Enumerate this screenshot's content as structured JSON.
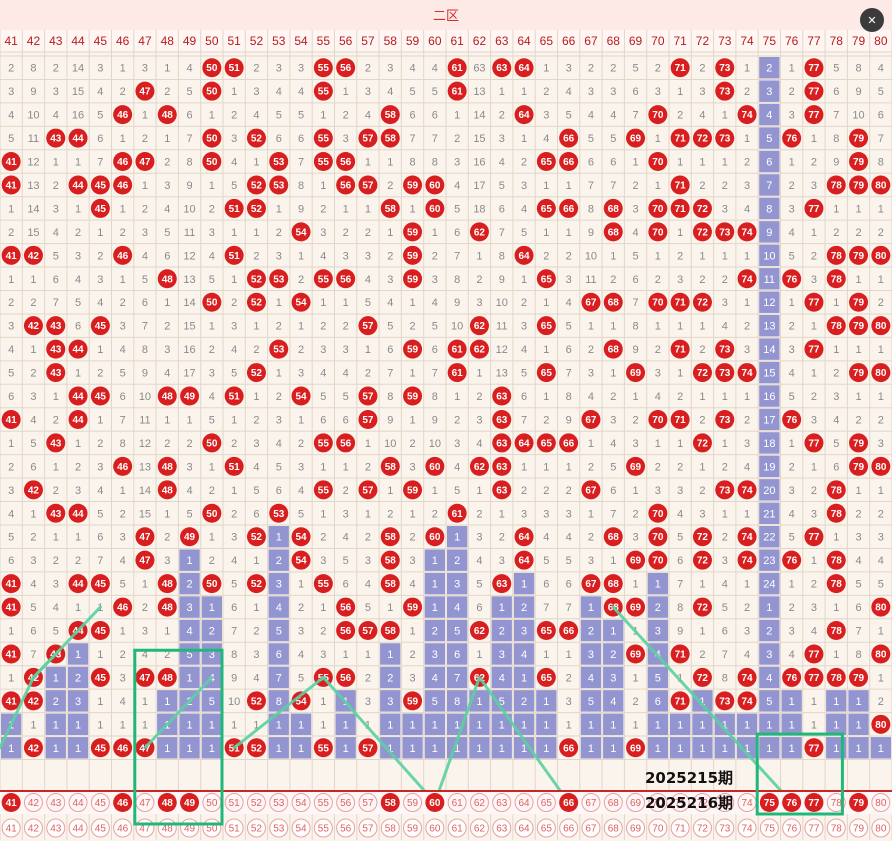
{
  "zone_title": "二区",
  "numbers": [
    41,
    42,
    43,
    44,
    45,
    46,
    47,
    48,
    49,
    50,
    51,
    52,
    53,
    54,
    55,
    56,
    57,
    58,
    59,
    60,
    61,
    62,
    63,
    64,
    65,
    66,
    67,
    68,
    69,
    70,
    71,
    72,
    73,
    74,
    75,
    76,
    77,
    78,
    79,
    80
  ],
  "period_labels": [
    "2025215期",
    "2025216期"
  ],
  "prediction_row": {
    "hits": [
      41,
      46,
      48,
      49,
      58,
      60,
      66,
      75,
      76,
      77,
      79
    ],
    "strokes": [
      41,
      42,
      43,
      44,
      45,
      46,
      47,
      48,
      49,
      50,
      51,
      52,
      53,
      54,
      55,
      56,
      57,
      59,
      61,
      62,
      63,
      64,
      65,
      67,
      68,
      69,
      70,
      71,
      72,
      73,
      74,
      78,
      80
    ]
  },
  "footer_row": [
    41,
    42,
    43,
    44,
    45,
    46,
    47,
    48,
    49,
    50,
    51,
    52,
    53,
    54,
    55,
    56,
    57,
    58,
    59,
    60,
    61,
    62,
    63,
    64,
    65,
    66,
    67,
    68,
    69,
    70,
    71,
    72,
    73,
    74,
    75,
    76,
    77,
    78,
    79,
    80
  ],
  "draw_rows": [
    [
      2,
      8,
      2,
      14,
      3,
      1,
      3,
      1,
      4,
      50,
      51,
      2,
      3,
      3,
      55,
      56,
      2,
      3,
      4,
      4,
      61,
      63,
      63,
      64,
      1,
      3,
      2,
      2,
      5,
      2,
      71,
      2,
      73,
      1,
      2,
      1,
      77,
      5,
      8,
      4
    ],
    [
      3,
      9,
      3,
      15,
      4,
      2,
      47,
      2,
      5,
      50,
      1,
      3,
      4,
      4,
      55,
      1,
      3,
      4,
      5,
      5,
      61,
      13,
      1,
      1,
      2,
      4,
      3,
      3,
      6,
      3,
      1,
      3,
      73,
      2,
      3,
      2,
      77,
      6,
      9,
      5
    ],
    [
      4,
      10,
      4,
      16,
      5,
      46,
      1,
      48,
      6,
      1,
      2,
      4,
      5,
      5,
      1,
      2,
      4,
      58,
      6,
      6,
      1,
      14,
      2,
      64,
      3,
      5,
      4,
      4,
      7,
      70,
      2,
      4,
      1,
      74,
      4,
      3,
      77,
      7,
      10,
      6
    ],
    [
      5,
      11,
      43,
      44,
      6,
      1,
      2,
      1,
      7,
      50,
      3,
      52,
      6,
      6,
      55,
      3,
      57,
      58,
      7,
      7,
      2,
      15,
      3,
      1,
      4,
      66,
      5,
      5,
      69,
      1,
      71,
      72,
      73,
      1,
      5,
      76,
      1,
      8,
      79,
      7
    ],
    [
      41,
      12,
      1,
      1,
      7,
      46,
      47,
      2,
      8,
      50,
      4,
      1,
      53,
      7,
      55,
      56,
      1,
      1,
      8,
      8,
      3,
      16,
      4,
      2,
      65,
      66,
      6,
      6,
      1,
      70,
      1,
      1,
      1,
      2,
      6,
      1,
      2,
      9,
      79,
      8
    ],
    [
      41,
      13,
      2,
      44,
      45,
      46,
      1,
      3,
      9,
      1,
      5,
      52,
      53,
      8,
      1,
      56,
      57,
      2,
      59,
      60,
      4,
      17,
      5,
      3,
      1,
      1,
      7,
      7,
      2,
      1,
      71,
      2,
      2,
      3,
      7,
      2,
      3,
      78,
      79,
      80
    ],
    [
      1,
      14,
      3,
      1,
      45,
      1,
      2,
      4,
      10,
      2,
      51,
      52,
      1,
      9,
      2,
      1,
      1,
      58,
      1,
      60,
      5,
      18,
      6,
      4,
      65,
      66,
      8,
      68,
      3,
      70,
      71,
      72,
      3,
      4,
      8,
      3,
      77,
      1,
      1,
      1
    ],
    [
      2,
      15,
      4,
      2,
      1,
      2,
      3,
      5,
      11,
      3,
      1,
      1,
      2,
      54,
      3,
      2,
      2,
      1,
      59,
      1,
      6,
      62,
      7,
      5,
      1,
      1,
      9,
      68,
      4,
      70,
      1,
      72,
      73,
      74,
      9,
      4,
      1,
      2,
      2,
      2
    ],
    [
      41,
      42,
      5,
      3,
      2,
      46,
      4,
      6,
      12,
      4,
      51,
      2,
      3,
      1,
      4,
      3,
      3,
      2,
      59,
      2,
      7,
      1,
      8,
      64,
      2,
      2,
      10,
      1,
      5,
      1,
      2,
      1,
      1,
      1,
      10,
      5,
      2,
      78,
      79,
      80
    ],
    [
      1,
      1,
      6,
      4,
      3,
      1,
      5,
      48,
      13,
      5,
      1,
      52,
      53,
      2,
      55,
      56,
      4,
      3,
      59,
      3,
      8,
      2,
      9,
      1,
      65,
      3,
      11,
      2,
      6,
      2,
      3,
      2,
      2,
      74,
      11,
      76,
      3,
      78,
      1,
      1
    ],
    [
      2,
      2,
      7,
      5,
      4,
      2,
      6,
      1,
      14,
      50,
      2,
      52,
      1,
      54,
      1,
      1,
      5,
      4,
      1,
      4,
      9,
      3,
      10,
      2,
      1,
      4,
      67,
      68,
      7,
      70,
      71,
      72,
      3,
      1,
      12,
      1,
      77,
      1,
      79,
      2
    ],
    [
      3,
      42,
      43,
      6,
      45,
      3,
      7,
      2,
      15,
      1,
      3,
      1,
      2,
      1,
      2,
      2,
      57,
      5,
      2,
      5,
      10,
      62,
      11,
      3,
      65,
      5,
      1,
      1,
      8,
      1,
      1,
      1,
      4,
      2,
      13,
      2,
      1,
      78,
      79,
      80
    ],
    [
      4,
      1,
      43,
      44,
      1,
      4,
      8,
      3,
      16,
      2,
      4,
      2,
      53,
      2,
      3,
      3,
      1,
      6,
      59,
      6,
      61,
      62,
      12,
      4,
      1,
      6,
      2,
      68,
      9,
      2,
      71,
      2,
      73,
      3,
      14,
      3,
      77,
      1,
      1,
      1
    ],
    [
      5,
      2,
      43,
      1,
      2,
      5,
      9,
      4,
      17,
      3,
      5,
      52,
      1,
      3,
      4,
      4,
      2,
      7,
      1,
      7,
      61,
      1,
      13,
      5,
      65,
      7,
      3,
      1,
      69,
      3,
      1,
      72,
      73,
      74,
      15,
      4,
      1,
      2,
      79,
      80
    ],
    [
      6,
      3,
      1,
      44,
      45,
      6,
      10,
      48,
      49,
      4,
      51,
      1,
      2,
      54,
      5,
      5,
      57,
      8,
      59,
      8,
      1,
      2,
      63,
      6,
      1,
      8,
      4,
      2,
      1,
      4,
      2,
      1,
      1,
      1,
      16,
      5,
      2,
      3,
      1,
      1
    ],
    [
      41,
      4,
      2,
      44,
      1,
      7,
      11,
      1,
      1,
      5,
      1,
      2,
      3,
      1,
      6,
      6,
      57,
      9,
      1,
      9,
      2,
      3,
      63,
      7,
      2,
      9,
      67,
      3,
      2,
      70,
      71,
      2,
      73,
      2,
      17,
      76,
      3,
      4,
      2,
      2
    ],
    [
      1,
      5,
      43,
      1,
      2,
      8,
      12,
      2,
      2,
      50,
      2,
      3,
      4,
      2,
      55,
      56,
      1,
      10,
      2,
      10,
      3,
      4,
      63,
      64,
      65,
      66,
      1,
      4,
      3,
      1,
      1,
      72,
      1,
      3,
      18,
      1,
      77,
      5,
      79,
      3
    ],
    [
      2,
      6,
      1,
      2,
      3,
      46,
      13,
      48,
      3,
      1,
      51,
      4,
      5,
      3,
      1,
      1,
      2,
      58,
      3,
      60,
      4,
      62,
      63,
      1,
      1,
      1,
      2,
      5,
      69,
      2,
      2,
      1,
      2,
      4,
      19,
      2,
      1,
      6,
      79,
      80
    ],
    [
      3,
      42,
      2,
      3,
      4,
      1,
      14,
      48,
      4,
      2,
      1,
      5,
      6,
      4,
      55,
      2,
      57,
      1,
      59,
      1,
      5,
      1,
      63,
      2,
      2,
      2,
      67,
      6,
      1,
      3,
      3,
      2,
      73,
      74,
      20,
      3,
      2,
      78,
      1,
      1
    ],
    [
      4,
      1,
      43,
      44,
      5,
      2,
      15,
      1,
      5,
      50,
      2,
      6,
      53,
      5,
      1,
      3,
      1,
      2,
      1,
      2,
      61,
      2,
      1,
      3,
      3,
      3,
      1,
      7,
      2,
      70,
      4,
      3,
      1,
      1,
      21,
      4,
      3,
      78,
      2,
      2
    ],
    [
      5,
      2,
      1,
      1,
      6,
      3,
      47,
      2,
      49,
      1,
      3,
      52,
      1,
      54,
      2,
      4,
      2,
      58,
      2,
      60,
      1,
      3,
      2,
      64,
      4,
      4,
      2,
      68,
      3,
      70,
      5,
      72,
      2,
      74,
      22,
      5,
      77,
      1,
      3,
      3
    ],
    [
      6,
      3,
      2,
      2,
      7,
      4,
      47,
      3,
      1,
      2,
      4,
      1,
      2,
      54,
      3,
      5,
      3,
      58,
      3,
      1,
      2,
      4,
      3,
      64,
      5,
      5,
      3,
      1,
      69,
      70,
      6,
      72,
      3,
      74,
      23,
      76,
      1,
      78,
      4,
      4
    ],
    [
      41,
      4,
      3,
      44,
      45,
      5,
      1,
      48,
      2,
      50,
      5,
      52,
      3,
      1,
      55,
      6,
      4,
      58,
      4,
      1,
      3,
      5,
      63,
      1,
      6,
      6,
      67,
      68,
      1,
      1,
      7,
      1,
      4,
      1,
      24,
      1,
      2,
      78,
      5,
      5
    ],
    [
      41,
      5,
      4,
      1,
      1,
      46,
      2,
      48,
      3,
      1,
      6,
      1,
      4,
      2,
      1,
      56,
      5,
      1,
      59,
      1,
      4,
      6,
      1,
      2,
      7,
      7,
      1,
      68,
      69,
      2,
      8,
      72,
      5,
      2,
      1,
      2,
      3,
      1,
      6,
      80
    ],
    [
      1,
      6,
      5,
      44,
      45,
      1,
      3,
      1,
      4,
      2,
      7,
      2,
      5,
      3,
      2,
      56,
      57,
      58,
      1,
      2,
      5,
      62,
      2,
      3,
      65,
      66,
      2,
      1,
      1,
      3,
      9,
      1,
      6,
      3,
      2,
      3,
      4,
      78,
      7,
      1
    ],
    [
      41,
      7,
      43,
      1,
      1,
      2,
      4,
      2,
      5,
      3,
      8,
      3,
      6,
      4,
      3,
      1,
      1,
      1,
      2,
      3,
      6,
      1,
      3,
      4,
      1,
      1,
      3,
      2,
      69,
      4,
      71,
      2,
      7,
      4,
      3,
      4,
      77,
      1,
      8,
      80
    ],
    [
      1,
      42,
      1,
      2,
      45,
      3,
      47,
      48,
      1,
      4,
      9,
      4,
      7,
      5,
      55,
      56,
      2,
      2,
      3,
      4,
      7,
      62,
      4,
      1,
      65,
      2,
      4,
      3,
      1,
      5,
      1,
      72,
      8,
      74,
      4,
      76,
      77,
      78,
      79,
      1
    ],
    [
      41,
      42,
      2,
      3,
      1,
      4,
      1,
      1,
      2,
      5,
      10,
      52,
      8,
      54,
      1,
      1,
      3,
      3,
      59,
      5,
      8,
      1,
      5,
      2,
      1,
      3,
      5,
      4,
      2,
      6,
      71,
      1,
      73,
      74,
      5,
      1,
      1,
      1,
      1,
      2
    ],
    [
      1,
      1,
      1,
      1,
      1,
      1,
      1,
      1,
      1,
      1,
      1,
      1,
      1,
      1,
      1,
      1,
      1,
      1,
      1,
      1,
      1,
      1,
      1,
      1,
      1,
      1,
      1,
      1,
      1,
      1,
      1,
      1,
      1,
      1,
      1,
      1,
      1,
      1,
      1,
      80
    ],
    [
      1,
      42,
      1,
      1,
      45,
      46,
      47,
      1,
      1,
      1,
      51,
      52,
      1,
      1,
      55,
      1,
      57,
      1,
      1,
      1,
      1,
      1,
      1,
      1,
      1,
      66,
      1,
      1,
      69,
      1,
      1,
      1,
      1,
      1,
      1,
      1,
      77,
      1,
      1,
      1
    ]
  ],
  "colors": {
    "ball_red": "#d81e1e",
    "block_blue": "#8d8fd0",
    "trend_green": "#5ad0a0",
    "highlight_green": "#1fb87a",
    "grid_line": "#e2d6c8",
    "cell_bg": "#fbf4ec",
    "header_bg": "#fde9e6"
  },
  "icons": [
    "close-icon"
  ]
}
